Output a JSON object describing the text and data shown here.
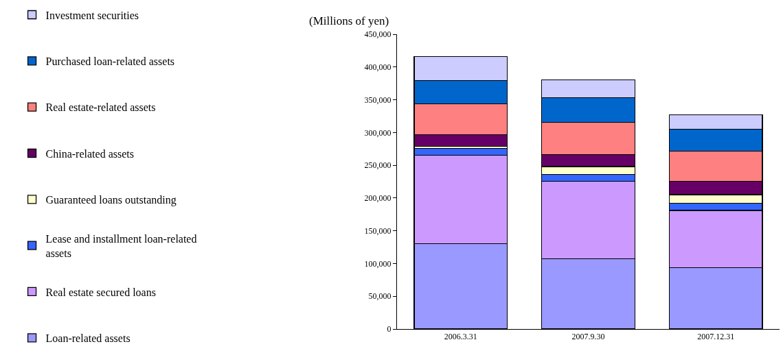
{
  "chart_data": {
    "type": "bar",
    "stacked": true,
    "ylabel": "(Millions of yen)",
    "categories": [
      "2006.3.31",
      "2007.9.30",
      "2007.12.31"
    ],
    "series": [
      {
        "name": "Loan-related assets",
        "color": "#9999ff",
        "values": [
          130000,
          107000,
          93500
        ]
      },
      {
        "name": "Real estate secured loans",
        "color": "#cc99ff",
        "values": [
          135000,
          118500,
          87500
        ]
      },
      {
        "name": "Lease and installment loan-related assets",
        "color": "#3366ff",
        "values": [
          10500,
          10500,
          11000
        ]
      },
      {
        "name": "Guaranteed loans outstanding",
        "color": "#ffffcc",
        "values": [
          3500,
          12000,
          13000
        ]
      },
      {
        "name": "China-related assets",
        "color": "#660066",
        "values": [
          18000,
          18000,
          20500
        ]
      },
      {
        "name": "Real estate-related assets",
        "color": "#ff8080",
        "values": [
          47000,
          49500,
          46000
        ]
      },
      {
        "name": "Purchased loan-related assets",
        "color": "#0066cc",
        "values": [
          35000,
          38000,
          33500
        ]
      },
      {
        "name": "Investment securities",
        "color": "#ccccff",
        "values": [
          37000,
          27000,
          22000
        ]
      }
    ],
    "ylim": [
      0,
      450000
    ],
    "yticks": [
      0,
      {
        "value": 50000,
        "label": "50,000"
      },
      {
        "value": 100000,
        "label": "100,000"
      },
      {
        "value": 150000,
        "label": "150,000"
      },
      {
        "value": 200000,
        "label": "200,000"
      },
      {
        "value": 250000,
        "label": "250,000"
      },
      {
        "value": 300000,
        "label": "300,000"
      },
      {
        "value": 350000,
        "label": "350,000"
      },
      {
        "value": 400000,
        "label": "400,000"
      },
      {
        "value": 450000,
        "label": "450,000"
      }
    ],
    "grid": false,
    "legend": "left"
  }
}
